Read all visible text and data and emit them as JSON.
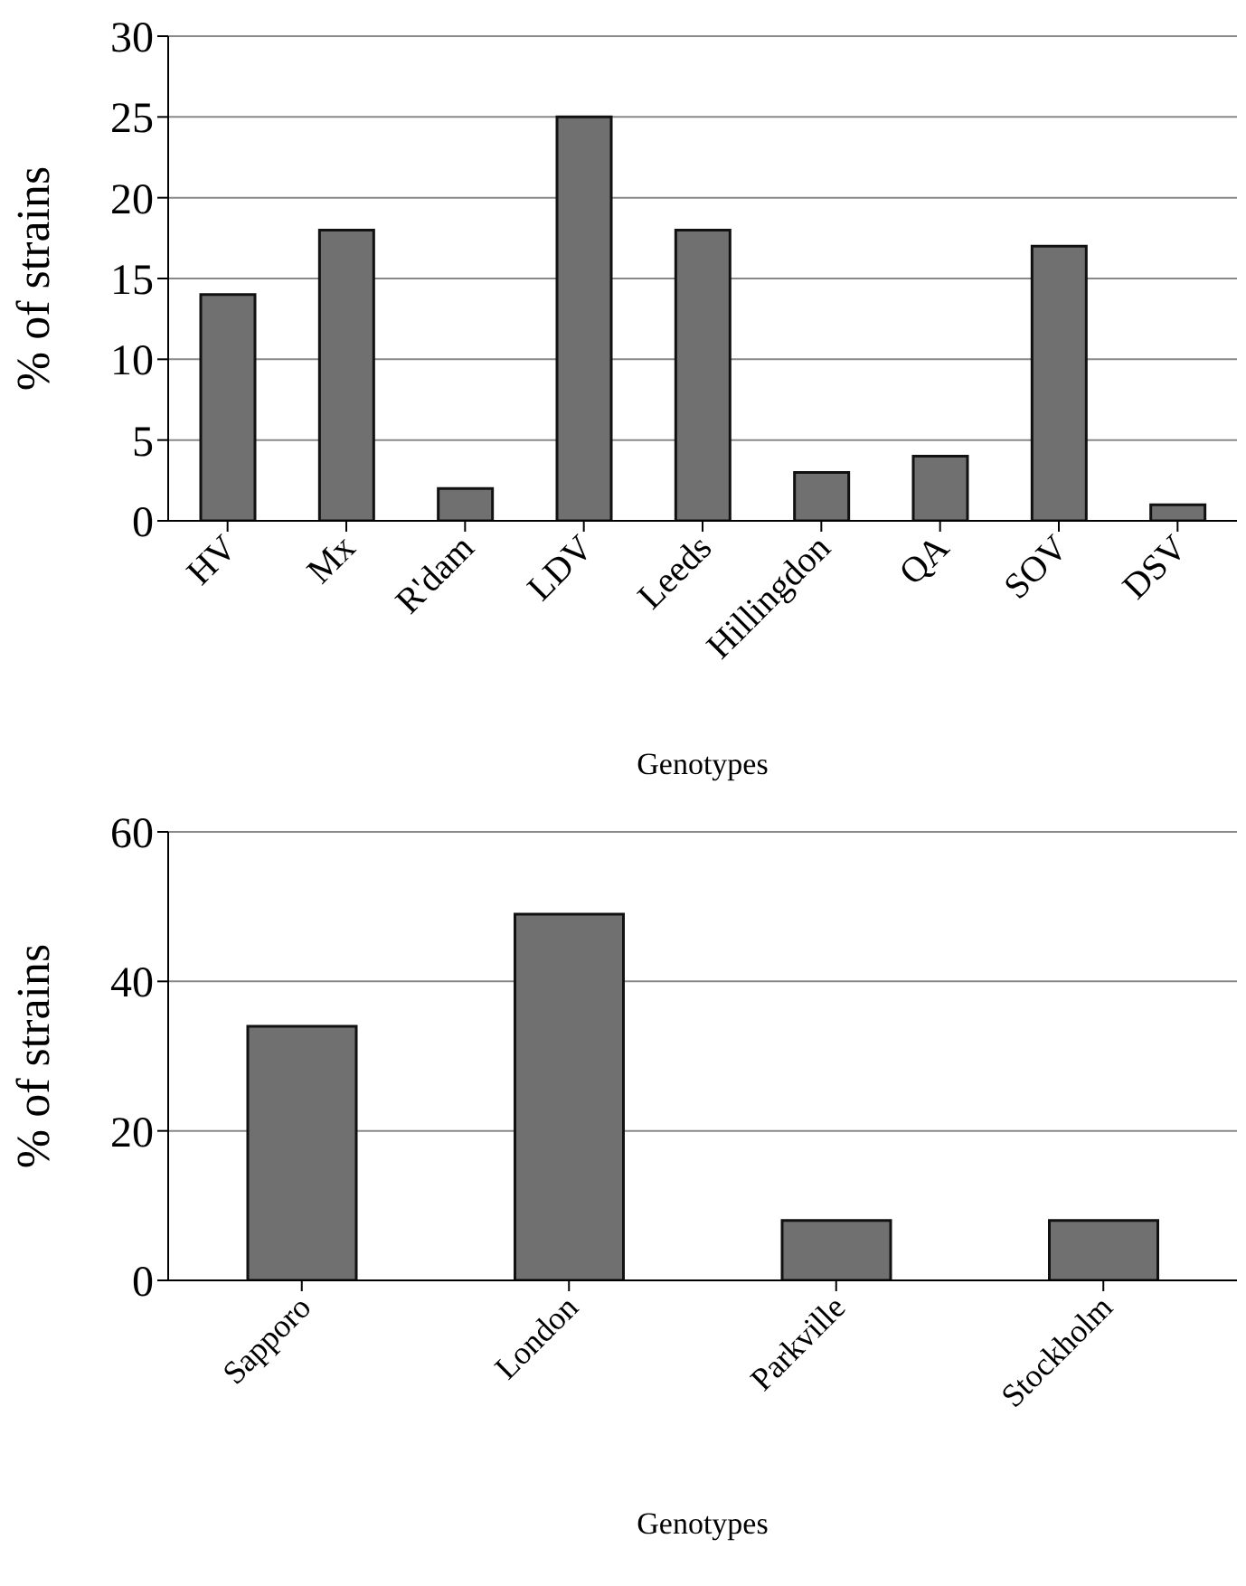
{
  "chart_data": [
    {
      "type": "bar",
      "categories": [
        "HV",
        "Mx",
        "R'dam",
        "LDV",
        "Leeds",
        "Hillingdon",
        "QA",
        "SOV",
        "DSV"
      ],
      "values": [
        14,
        18,
        2,
        25,
        18,
        3,
        4,
        17,
        1
      ],
      "color": "#707070",
      "xlabel": "Genotypes",
      "ylabel": "% of strains",
      "ylim": [
        0,
        30
      ],
      "yticks": [
        0,
        5,
        10,
        15,
        20,
        25,
        30
      ],
      "grid": "y"
    },
    {
      "type": "bar",
      "categories": [
        "Sapporo",
        "London",
        "Parkville",
        "Stockholm"
      ],
      "values": [
        34,
        49,
        8,
        8
      ],
      "color": "#707070",
      "xlabel": "Genotypes",
      "ylabel": "% of strains",
      "ylim": [
        0,
        60
      ],
      "yticks": [
        0,
        20,
        40,
        60
      ],
      "grid": "y"
    }
  ]
}
